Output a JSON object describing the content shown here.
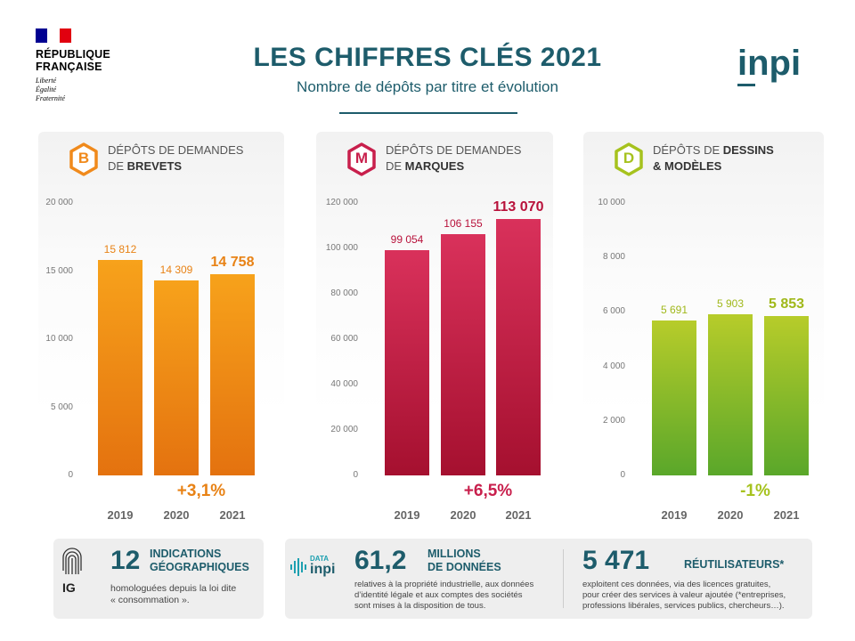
{
  "header": {
    "rf_name_line1": "RÉPUBLIQUE",
    "rf_name_line2": "FRANÇAISE",
    "rf_motto_1": "Liberté",
    "rf_motto_2": "Égalité",
    "rf_motto_3": "Fraternité",
    "title": "LES CHIFFRES CLÉS 2021",
    "subtitle": "Nombre de dépôts par titre et évolution",
    "brand": "inpi"
  },
  "colors": {
    "teal": "#1d5c6b",
    "brevets": "#f08a1c",
    "marques": "#c81f4c",
    "dessins": "#a6c21e"
  },
  "chart_data": [
    {
      "type": "bar",
      "badge": "B",
      "header_line1": "DÉPÔTS DE DEMANDES",
      "header_line2_prefix": "DE ",
      "header_line2_bold": "BREVETS",
      "categories": [
        "2019",
        "2020",
        "2021"
      ],
      "values": [
        15812,
        14309,
        14758
      ],
      "value_labels": [
        "15 812",
        "14 309",
        "14 758"
      ],
      "ylim": [
        0,
        20000
      ],
      "yticks": [
        "0",
        "5 000",
        "10 000",
        "15 000",
        "20 000"
      ],
      "evolution": "+3,1%",
      "grid": false
    },
    {
      "type": "bar",
      "badge": "M",
      "header_line1": "DÉPÔTS DE DEMANDES",
      "header_line2_prefix": "DE ",
      "header_line2_bold": "MARQUES",
      "categories": [
        "2019",
        "2020",
        "2021"
      ],
      "values": [
        99054,
        106155,
        113070
      ],
      "value_labels": [
        "99 054",
        "106 155",
        "113 070"
      ],
      "ylim": [
        0,
        120000
      ],
      "yticks": [
        "0",
        "20 000",
        "40 000",
        "60 000",
        "80 000",
        "100 000",
        "120 000"
      ],
      "evolution": "+6,5%",
      "grid": false
    },
    {
      "type": "bar",
      "badge": "D",
      "header_line1_prefix": "DÉPÔTS DE ",
      "header_line1_bold": "DESSINS",
      "header_line2_prefix": "",
      "header_line2_bold": "& MODÈLES",
      "categories": [
        "2019",
        "2020",
        "2021"
      ],
      "values": [
        5691,
        5903,
        5853
      ],
      "value_labels": [
        "5 691",
        "5 903",
        "5 853"
      ],
      "ylim": [
        0,
        10000
      ],
      "yticks": [
        "0",
        "2 000",
        "4 000",
        "6 000",
        "8 000",
        "10 000"
      ],
      "evolution": "-1%",
      "grid": false
    }
  ],
  "bottom": {
    "ig": {
      "icon_label": "IG",
      "number": "12",
      "label_line1": "INDICATIONS",
      "label_line2": "GÉOGRAPHIQUES",
      "desc_line1": "homologuées depuis la loi dite",
      "desc_line2": "« consommation »."
    },
    "data": {
      "logo_top": "DATA",
      "logo_bottom": "inpi",
      "number": "61,2",
      "label_line1": "MILLIONS",
      "label_line2": "DE DONNÉES",
      "desc_line1": "relatives à la propriété industrielle, aux données",
      "desc_line2": "d’identité légale et aux comptes des sociétés",
      "desc_line3": "sont mises à la disposition de tous."
    },
    "reuse": {
      "number": "5 471",
      "label": "RÉUTILISATEURS*",
      "desc_line1": "exploitent ces données, via des licences gratuites,",
      "desc_line2": "pour créer des services à valeur ajoutée (*entreprises,",
      "desc_line3": "professions libérales, services publics, chercheurs…)."
    }
  }
}
